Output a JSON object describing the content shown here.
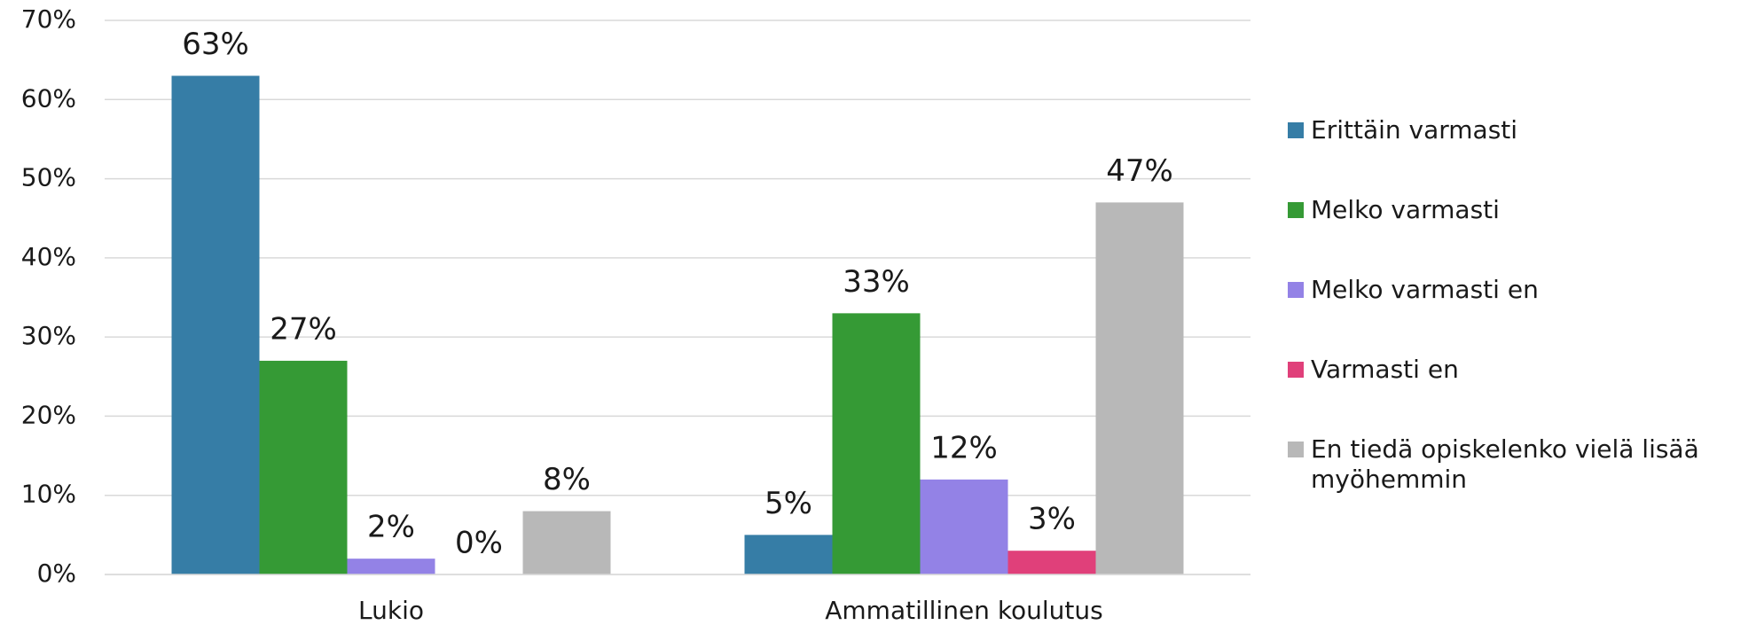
{
  "chart_data": {
    "type": "bar",
    "categories": [
      "Lukio",
      "Ammatillinen koulutus"
    ],
    "series": [
      {
        "name": "Erittäin varmasti",
        "color": "#367da6",
        "values": [
          63,
          5
        ],
        "value_labels": [
          "63%",
          "5%"
        ]
      },
      {
        "name": "Melko varmasti",
        "color": "#359a35",
        "values": [
          27,
          33
        ],
        "value_labels": [
          "27%",
          "33%"
        ]
      },
      {
        "name": "Melko varmasti en",
        "color": "#9382e6",
        "values": [
          2,
          12
        ],
        "value_labels": [
          "2%",
          "12%"
        ]
      },
      {
        "name": "Varmasti en",
        "color": "#e0407a",
        "values": [
          0,
          3
        ],
        "value_labels": [
          "0%",
          "3%"
        ]
      },
      {
        "name": "En tiedä opiskelenko vielä lisää myöhemmin",
        "color": "#b8b8b8",
        "values": [
          8,
          47
        ],
        "value_labels": [
          "8%",
          "47%"
        ]
      }
    ],
    "ylim": [
      0,
      70
    ],
    "yticks": [
      {
        "value": 0,
        "label": "0%"
      },
      {
        "value": 10,
        "label": "10%"
      },
      {
        "value": 20,
        "label": "20%"
      },
      {
        "value": 30,
        "label": "30%"
      },
      {
        "value": 40,
        "label": "40%"
      },
      {
        "value": 50,
        "label": "50%"
      },
      {
        "value": 60,
        "label": "60%"
      },
      {
        "value": 70,
        "label": "70%"
      }
    ],
    "grid": true,
    "legend": "right"
  }
}
